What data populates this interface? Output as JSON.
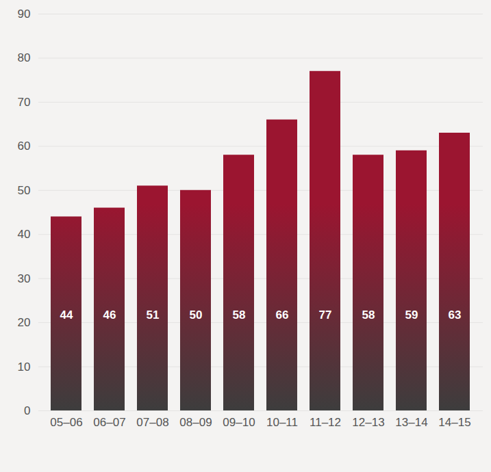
{
  "chart_data": {
    "type": "bar",
    "categories": [
      "05–06",
      "06–07",
      "07–08",
      "08–09",
      "09–10",
      "10–11",
      "11–12",
      "12–13",
      "13–14",
      "14–15"
    ],
    "values": [
      44,
      46,
      51,
      50,
      58,
      66,
      77,
      58,
      59,
      63
    ],
    "color": "#9b1530",
    "ylim": [
      0,
      90
    ],
    "yticks": [
      0,
      10,
      20,
      30,
      40,
      50,
      60,
      70,
      80,
      90
    ],
    "grid": true,
    "data_labels": true
  }
}
